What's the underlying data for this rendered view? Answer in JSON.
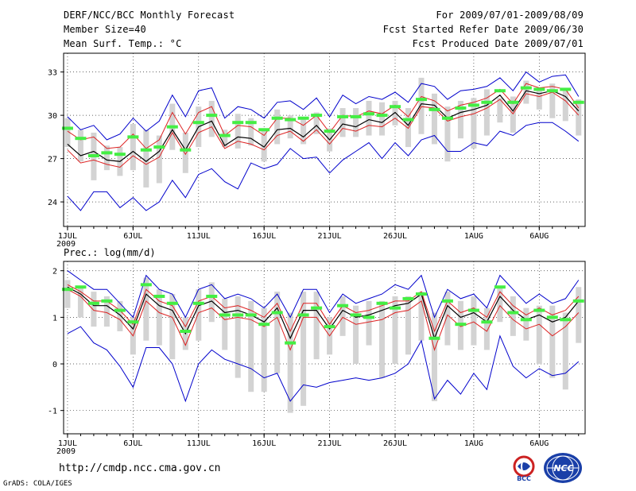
{
  "header": {
    "title": "DERF/NCC/BCC Monthly Forecast",
    "member_size": "Member Size=40",
    "variable": "Mean Surf. Temp.: °C",
    "period": "For 2009/07/01-2009/08/09",
    "fcst_started": "Fcst Started Refer Date 2009/06/30",
    "fcst_produced": "Fcst Produced Date 2009/07/01"
  },
  "footer": {
    "url": "http://cmdp.ncc.cma.gov.cn",
    "grads": "GrADS: COLA/IGES",
    "logo_bcc": "BCC",
    "logo_ncc": "NCC"
  },
  "colors": {
    "max_min": "#0000cc",
    "upper_lower": "#dd2222",
    "mean": "#000000",
    "spread_box": "#d3d3d3",
    "marker": "#44ee44"
  },
  "chart_data": [
    {
      "type": "line",
      "title": "Mean Surf. Temp.: °C",
      "ylabel": "°C",
      "ylim": [
        22.3,
        34.3
      ],
      "yticks": [
        24,
        27,
        30,
        33
      ],
      "xlim": [
        0.7,
        40.5
      ],
      "xticks": [
        {
          "x": 1,
          "label": "1JUL"
        },
        {
          "x": 6,
          "label": "6JUL"
        },
        {
          "x": 11,
          "label": "11JUL"
        },
        {
          "x": 16,
          "label": "16JUL"
        },
        {
          "x": 21,
          "label": "21JUL"
        },
        {
          "x": 26,
          "label": "26JUL"
        },
        {
          "x": 32,
          "label": "1AUG"
        },
        {
          "x": 37,
          "label": "6AUG"
        }
      ],
      "year_label": "2009",
      "x": [
        1,
        2,
        3,
        4,
        5,
        6,
        7,
        8,
        9,
        10,
        11,
        12,
        13,
        14,
        15,
        16,
        17,
        18,
        19,
        20,
        21,
        22,
        23,
        24,
        25,
        26,
        27,
        28,
        29,
        30,
        31,
        32,
        33,
        34,
        35,
        36,
        37,
        38,
        39,
        40
      ],
      "series": [
        {
          "name": "max",
          "color": "#0000cc",
          "values": [
            29.9,
            29.0,
            29.3,
            28.3,
            28.7,
            29.8,
            28.9,
            29.6,
            31.4,
            29.9,
            31.7,
            31.9,
            29.8,
            30.6,
            30.4,
            29.8,
            30.9,
            31.0,
            30.4,
            31.2,
            29.9,
            31.4,
            30.8,
            31.3,
            31.1,
            31.6,
            30.9,
            32.2,
            32.0,
            31.1,
            31.7,
            31.8,
            32.0,
            32.6,
            31.7,
            33.0,
            32.3,
            32.7,
            32.8,
            31.3
          ]
        },
        {
          "name": "upper",
          "color": "#dd2222",
          "values": [
            28.9,
            28.3,
            28.5,
            27.7,
            27.8,
            28.7,
            27.7,
            28.3,
            30.2,
            28.7,
            30.2,
            30.6,
            28.6,
            29.3,
            29.2,
            28.6,
            29.8,
            29.8,
            29.3,
            30.0,
            28.8,
            30.0,
            29.9,
            30.3,
            30.1,
            30.7,
            29.9,
            31.3,
            31.0,
            30.3,
            30.7,
            30.9,
            31.2,
            31.8,
            30.8,
            32.2,
            31.9,
            32.0,
            31.8,
            30.5
          ]
        },
        {
          "name": "mean",
          "color": "#000000",
          "values": [
            28.0,
            27.2,
            27.5,
            26.9,
            26.8,
            27.5,
            26.8,
            27.5,
            29.0,
            27.6,
            29.2,
            29.6,
            27.9,
            28.5,
            28.4,
            27.8,
            29.0,
            29.1,
            28.5,
            29.3,
            28.3,
            29.4,
            29.2,
            29.7,
            29.5,
            30.2,
            29.3,
            30.8,
            30.7,
            29.8,
            30.2,
            30.4,
            30.7,
            31.4,
            30.3,
            31.7,
            31.5,
            31.7,
            31.3,
            30.3
          ]
        },
        {
          "name": "lower",
          "color": "#dd2222",
          "values": [
            27.6,
            26.7,
            26.9,
            26.6,
            26.4,
            27.2,
            26.6,
            27.1,
            28.8,
            27.3,
            28.8,
            29.2,
            27.7,
            28.2,
            28.0,
            27.6,
            28.6,
            28.9,
            28.2,
            29.0,
            28.0,
            29.1,
            28.9,
            29.3,
            29.2,
            29.8,
            29.1,
            30.6,
            30.5,
            29.6,
            29.9,
            30.1,
            30.5,
            31.1,
            30.1,
            31.5,
            31.3,
            31.6,
            31.0,
            30.0
          ]
        },
        {
          "name": "min",
          "color": "#0000cc",
          "values": [
            24.4,
            23.4,
            24.7,
            24.7,
            23.6,
            24.3,
            23.4,
            24.0,
            25.5,
            24.3,
            25.9,
            26.3,
            25.4,
            24.9,
            26.7,
            26.3,
            26.6,
            27.7,
            27.0,
            27.1,
            26.0,
            26.9,
            27.5,
            28.1,
            27.0,
            28.1,
            27.2,
            28.3,
            28.6,
            27.5,
            27.5,
            28.1,
            27.9,
            28.9,
            28.6,
            29.3,
            29.5,
            29.5,
            28.9,
            28.2
          ]
        },
        {
          "name": "spread_box_top",
          "color": "#d3d3d3",
          "values": [
            29.8,
            29.0,
            28.8,
            27.9,
            27.8,
            29.4,
            29.0,
            28.6,
            30.8,
            28.8,
            30.6,
            31.0,
            29.0,
            30.1,
            29.8,
            29.0,
            30.4,
            30.0,
            29.7,
            30.2,
            29.1,
            30.5,
            30.5,
            31.0,
            30.9,
            31.0,
            30.5,
            32.6,
            31.5,
            30.6,
            31.0,
            31.2,
            31.8,
            31.2,
            31.3,
            32.4,
            31.7,
            32.2,
            31.8,
            31.1
          ]
        },
        {
          "name": "spread_box_bottom",
          "color": "#d3d3d3",
          "values": [
            27.8,
            26.8,
            25.5,
            26.2,
            25.8,
            26.2,
            25.0,
            25.3,
            27.6,
            26.0,
            27.8,
            28.5,
            27.8,
            27.7,
            27.9,
            26.8,
            28.0,
            28.4,
            28.0,
            28.7,
            27.5,
            28.5,
            28.5,
            28.6,
            28.6,
            29.3,
            27.8,
            28.7,
            28.0,
            26.8,
            28.4,
            27.7,
            28.6,
            29.5,
            28.8,
            30.8,
            30.4,
            29.8,
            29.6,
            28.6
          ]
        },
        {
          "name": "marker",
          "color": "#44ee44",
          "values": [
            29.1,
            28.4,
            27.2,
            27.4,
            27.3,
            28.5,
            27.6,
            27.8,
            29.2,
            27.6,
            29.5,
            30.0,
            28.6,
            29.5,
            29.5,
            29.0,
            29.8,
            29.7,
            29.8,
            30.0,
            28.9,
            29.9,
            29.9,
            30.1,
            30.0,
            30.6,
            29.7,
            31.1,
            30.4,
            29.8,
            30.5,
            30.7,
            30.9,
            31.7,
            30.9,
            31.9,
            31.8,
            31.7,
            31.8,
            30.9
          ]
        }
      ]
    },
    {
      "type": "line",
      "title": "Prec.: log(mm/d)",
      "ylabel": "log(mm/d)",
      "ylim": [
        -1.5,
        2.2
      ],
      "yticks": [
        -1,
        0,
        1,
        2
      ],
      "xlim": [
        0.7,
        40.5
      ],
      "xticks": [
        {
          "x": 1,
          "label": "1JUL"
        },
        {
          "x": 6,
          "label": "6JUL"
        },
        {
          "x": 11,
          "label": "11JUL"
        },
        {
          "x": 16,
          "label": "16JUL"
        },
        {
          "x": 21,
          "label": "21JUL"
        },
        {
          "x": 26,
          "label": "26JUL"
        },
        {
          "x": 32,
          "label": "1AUG"
        },
        {
          "x": 37,
          "label": "6AUG"
        }
      ],
      "year_label": "2009",
      "x": [
        1,
        2,
        3,
        4,
        5,
        6,
        7,
        8,
        9,
        10,
        11,
        12,
        13,
        14,
        15,
        16,
        17,
        18,
        19,
        20,
        21,
        22,
        23,
        24,
        25,
        26,
        27,
        28,
        29,
        30,
        31,
        32,
        33,
        34,
        35,
        36,
        37,
        38,
        39,
        40
      ],
      "series": [
        {
          "name": "max",
          "color": "#0000cc",
          "values": [
            2.0,
            1.8,
            1.6,
            1.6,
            1.3,
            1.0,
            1.9,
            1.6,
            1.5,
            1.0,
            1.6,
            1.7,
            1.4,
            1.5,
            1.4,
            1.2,
            1.5,
            1.0,
            1.6,
            1.6,
            1.1,
            1.5,
            1.3,
            1.4,
            1.5,
            1.7,
            1.6,
            1.9,
            1.0,
            1.6,
            1.4,
            1.5,
            1.2,
            1.9,
            1.6,
            1.3,
            1.5,
            1.3,
            1.4,
            1.8
          ]
        },
        {
          "name": "upper",
          "color": "#dd2222",
          "values": [
            1.7,
            1.55,
            1.35,
            1.35,
            1.15,
            0.85,
            1.6,
            1.35,
            1.25,
            0.8,
            1.35,
            1.45,
            1.2,
            1.25,
            1.15,
            1.0,
            1.3,
            0.7,
            1.3,
            1.3,
            0.85,
            1.25,
            1.1,
            1.15,
            1.25,
            1.35,
            1.35,
            1.55,
            0.7,
            1.35,
            1.1,
            1.2,
            1.0,
            1.55,
            1.25,
            1.05,
            1.2,
            1.05,
            1.15,
            1.45
          ]
        },
        {
          "name": "mean",
          "color": "#000000",
          "values": [
            1.65,
            1.5,
            1.25,
            1.25,
            1.05,
            0.75,
            1.5,
            1.25,
            1.15,
            0.65,
            1.25,
            1.35,
            1.1,
            1.15,
            1.05,
            0.9,
            1.2,
            0.55,
            1.15,
            1.15,
            0.75,
            1.15,
            1.0,
            1.05,
            1.15,
            1.25,
            1.3,
            1.5,
            0.55,
            1.25,
            1.0,
            1.1,
            0.9,
            1.45,
            1.15,
            0.95,
            1.05,
            0.9,
            1.0,
            1.35
          ]
        },
        {
          "name": "lower",
          "color": "#dd2222",
          "values": [
            1.6,
            1.45,
            1.15,
            1.1,
            0.95,
            0.6,
            1.35,
            1.1,
            1.0,
            0.4,
            1.1,
            1.2,
            0.95,
            1.0,
            0.95,
            0.8,
            1.0,
            0.3,
            1.0,
            1.0,
            0.6,
            1.0,
            0.85,
            0.9,
            0.95,
            1.1,
            1.15,
            1.35,
            0.3,
            1.05,
            0.8,
            0.9,
            0.7,
            1.25,
            0.95,
            0.75,
            0.85,
            0.6,
            0.8,
            1.1
          ]
        },
        {
          "name": "min",
          "color": "#0000cc",
          "values": [
            0.65,
            0.8,
            0.45,
            0.3,
            -0.05,
            -0.5,
            0.35,
            0.35,
            0.0,
            -0.8,
            0.0,
            0.3,
            0.1,
            0.0,
            -0.1,
            -0.3,
            -0.2,
            -0.8,
            -0.45,
            -0.5,
            -0.4,
            -0.35,
            -0.3,
            -0.35,
            -0.3,
            -0.2,
            0.0,
            0.5,
            -0.75,
            -0.35,
            -0.65,
            -0.2,
            -0.55,
            0.6,
            -0.05,
            -0.3,
            -0.1,
            -0.25,
            -0.2,
            0.05
          ]
        },
        {
          "name": "spread_box_top",
          "color": "#d3d3d3",
          "values": [
            1.8,
            1.65,
            1.55,
            1.45,
            1.35,
            1.0,
            1.85,
            1.6,
            1.5,
            1.0,
            1.6,
            1.75,
            1.4,
            1.45,
            1.35,
            1.2,
            1.55,
            1.1,
            1.55,
            1.55,
            1.0,
            1.45,
            1.25,
            1.35,
            1.35,
            1.45,
            1.45,
            1.55,
            1.1,
            1.55,
            1.35,
            1.45,
            1.2,
            1.65,
            1.45,
            1.2,
            1.25,
            1.25,
            1.1,
            1.65
          ]
        },
        {
          "name": "spread_box_bottom",
          "color": "#d3d3d3",
          "values": [
            1.2,
            1.0,
            0.8,
            0.8,
            0.7,
            0.2,
            0.5,
            0.4,
            0.1,
            0.3,
            0.5,
            0.9,
            0.3,
            -0.3,
            -0.6,
            -0.6,
            -0.2,
            -1.05,
            -0.9,
            0.1,
            0.2,
            0.6,
            0.0,
            0.4,
            -0.3,
            0.0,
            0.2,
            0.5,
            -0.8,
            0.4,
            0.3,
            0.4,
            0.3,
            0.9,
            0.6,
            0.5,
            0.0,
            -0.3,
            -0.55,
            0.45
          ]
        },
        {
          "name": "marker",
          "color": "#44ee44",
          "values": [
            1.6,
            1.65,
            1.3,
            1.35,
            1.15,
            0.9,
            1.7,
            1.45,
            1.3,
            0.7,
            1.3,
            1.45,
            1.05,
            1.05,
            1.05,
            0.85,
            1.1,
            0.45,
            1.05,
            1.2,
            0.8,
            1.25,
            1.05,
            1.0,
            1.3,
            1.2,
            1.4,
            1.5,
            0.55,
            1.35,
            0.85,
            1.15,
            0.9,
            1.65,
            1.1,
            0.95,
            1.15,
            1.0,
            0.95,
            1.35
          ]
        }
      ]
    }
  ]
}
